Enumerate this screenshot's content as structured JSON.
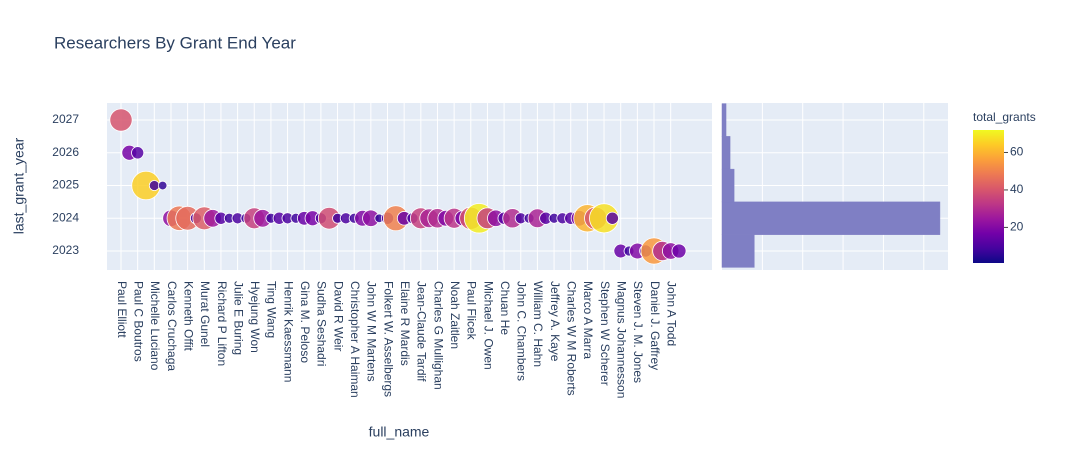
{
  "chart_data": {
    "type": "scatter",
    "title": "Researchers By Grant End Year",
    "x_label": "full_name",
    "y_label": "last_grant_year",
    "color_label": "total_grants",
    "categories": [
      "Paul Elliott",
      null,
      "Paul C Boutros",
      null,
      "Michelle Luciano",
      null,
      "Carlos Cruchaga",
      null,
      "Kenneth Offit",
      null,
      "Murat Gunel",
      null,
      "Richard P Lifton",
      null,
      "Julie E Buring",
      null,
      "Hyejung Won",
      null,
      "Ting Wang",
      null,
      "Henrik Kaessmann",
      null,
      "Gina M. Peloso",
      null,
      "Sudha Seshadri",
      null,
      "David R Weir",
      null,
      "Christopher A Haiman",
      null,
      "John W M Martens",
      null,
      "Folkert W. Asselbergs",
      null,
      "Elaine R Mardis",
      null,
      "Jean-Claude Tardif",
      null,
      "Charles G Mullighan",
      null,
      "Noah Zaitlen",
      null,
      "Paul Flicek",
      null,
      "Michael J. Owen",
      null,
      "Chuan He",
      null,
      "John C. Chambers",
      null,
      "William C. Hahn",
      null,
      "Jeffrey A. Kaye",
      null,
      "Charles W M Roberts",
      null,
      "Marco A Marra",
      null,
      "Stephen W Scherer",
      null,
      "Magnus Johannesson",
      null,
      "Steven J. M. Jones",
      null,
      "Daniel J. Gaffrey",
      null,
      "John A Todd",
      null
    ],
    "series": [
      {
        "name": "total_grants",
        "values": [
          2027,
          2026,
          2026,
          2025,
          2025,
          2025,
          2024,
          2024,
          2024,
          2024,
          2024,
          2024,
          2024,
          2024,
          2024,
          2024,
          2024,
          2024,
          2024,
          2024,
          2024,
          2024,
          2024,
          2024,
          2024,
          2024,
          2024,
          2024,
          2024,
          2024,
          2024,
          2024,
          2024,
          2024,
          2024,
          2024,
          2024,
          2024,
          2024,
          2024,
          2024,
          2024,
          2024,
          2024,
          2024,
          2024,
          2024,
          2024,
          2024,
          2024,
          2024,
          2024,
          2024,
          2024,
          2024,
          2024,
          2024,
          2024,
          2024,
          2024,
          2023,
          2023,
          2023,
          2023,
          2023,
          2023,
          2023,
          2023
        ],
        "sizes": [
          40,
          18,
          12,
          65,
          8,
          6,
          22,
          48,
          45,
          10,
          42,
          25,
          12,
          8,
          10,
          8,
          35,
          25,
          8,
          12,
          10,
          8,
          15,
          18,
          10,
          38,
          8,
          10,
          8,
          20,
          22,
          6,
          12,
          50,
          15,
          10,
          35,
          28,
          30,
          20,
          32,
          18,
          40,
          70,
          35,
          22,
          12,
          30,
          10,
          8,
          28,
          12,
          8,
          10,
          12,
          20,
          60,
          40,
          68,
          12,
          15,
          8,
          20,
          12,
          55,
          30,
          22,
          16
        ]
      }
    ],
    "ylim": [
      2022.42,
      2027.52
    ],
    "yticks": [
      2023,
      2024,
      2025,
      2026,
      2027
    ],
    "color_range": [
      1,
      72
    ],
    "color_ticks": [
      20,
      40,
      60
    ],
    "colorscale": [
      "#0d0887",
      "#46039f",
      "#7201a8",
      "#9c179e",
      "#bd3786",
      "#d8576b",
      "#ed7953",
      "#fb9f3a",
      "#fdca26",
      "#f0f921"
    ],
    "grid": true,
    "histogram": {
      "bins": [
        2022.5,
        2023.5,
        2024.5,
        2025.5,
        2026.5,
        2027.5
      ],
      "counts": [
        8,
        54,
        3,
        2,
        1
      ],
      "color": "#7f7fc4",
      "xlim": [
        0,
        56
      ],
      "xticks": [
        10,
        20,
        30,
        40,
        50
      ]
    }
  }
}
